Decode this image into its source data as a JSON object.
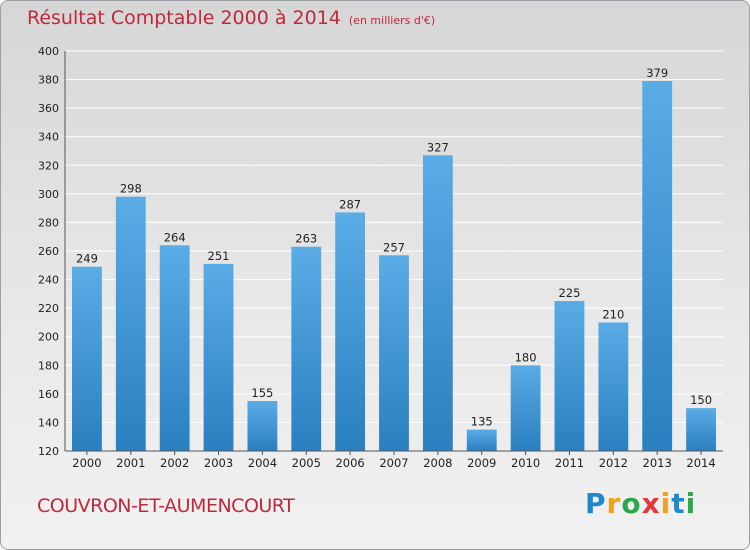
{
  "title": {
    "main": "Résultat Comptable 2000 à 2014",
    "unit": "(en milliers d'€)"
  },
  "commune": "COUVRON-ET-AUMENCOURT",
  "logo": {
    "letters": [
      "P",
      "r",
      "o",
      "x",
      "i",
      "t",
      "i"
    ],
    "colors": [
      "#1e88c8",
      "#f0a020",
      "#2aa84a",
      "#e23a3a",
      "#f0a020",
      "#1e88c8",
      "#2aa84a"
    ]
  },
  "colors": {
    "bar_top": "#5aace6",
    "bar_bottom": "#2a7fc0",
    "title": "#c0283c",
    "grid": "#ffffff",
    "axis": "#555555"
  },
  "chart_data": {
    "type": "bar",
    "title": "Résultat Comptable 2000 à 2014",
    "xlabel": "",
    "ylabel": "en milliers d'€",
    "categories": [
      "2000",
      "2001",
      "2002",
      "2003",
      "2004",
      "2005",
      "2006",
      "2007",
      "2008",
      "2009",
      "2010",
      "2011",
      "2012",
      "2013",
      "2014"
    ],
    "values": [
      249,
      298,
      264,
      251,
      155,
      263,
      287,
      257,
      327,
      135,
      180,
      225,
      210,
      379,
      150
    ],
    "ylim": [
      120,
      400
    ],
    "yticks": [
      120,
      140,
      160,
      180,
      200,
      220,
      240,
      260,
      280,
      300,
      320,
      340,
      360,
      380,
      400
    ],
    "grid": true
  }
}
